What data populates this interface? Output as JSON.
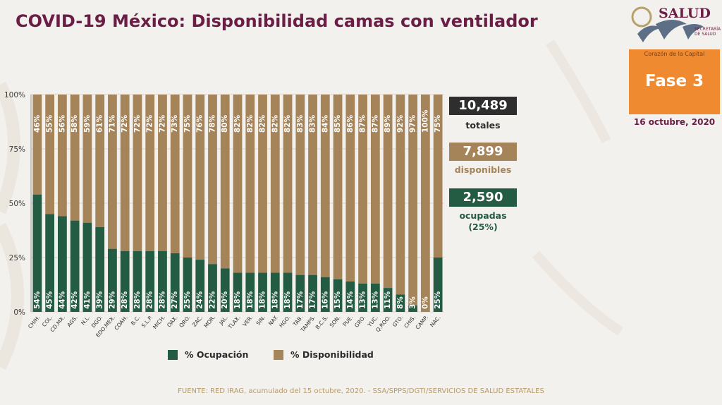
{
  "header": {
    "title": "COVID-19 México: Disponibilidad camas con ventilador"
  },
  "logo": {
    "word": "SALUD",
    "sub": "SECRETARÍA DE SALUD"
  },
  "phase": {
    "sub": "Corazón de la Capital",
    "label": "Fase 3",
    "date": "16 octubre, 2020"
  },
  "stats": {
    "total": {
      "value": "10,489",
      "caption": "totales"
    },
    "available": {
      "value": "7,899",
      "caption": "disponibles"
    },
    "occupied": {
      "value": "2,590",
      "caption_line1": "ocupadas",
      "caption_line2": "(25%)"
    }
  },
  "legend": {
    "occupancy": "% Ocupación",
    "availability": "% Disponibilidad"
  },
  "source": "FUENTE: RED IRAG, acumulado del 15 octubre, 2020. - SSA/SPPS/DGTI/SERVICIOS DE SALUD ESTATALES",
  "colors": {
    "occupancy": "#245b43",
    "availability": "#a6845a",
    "title": "#6c1d45",
    "phase": "#f08a30",
    "total_box": "#2e2e2e"
  },
  "chart_data": {
    "type": "bar",
    "stacked": true,
    "categories": [
      "CHIH.",
      "COL.",
      "CD.MX.",
      "AGS.",
      "N.L.",
      "DGO.",
      "EDO.MEX.",
      "COAH.",
      "B.C.",
      "S.L.P.",
      "MICH.",
      "OAX.",
      "QRO.",
      "ZAC.",
      "MOR.",
      "JAL.",
      "TLAX.",
      "VER.",
      "SIN.",
      "NAY.",
      "HGO.",
      "TAB.",
      "TAMPS.",
      "B.C.S.",
      "SON.",
      "PUE.",
      "GRO.",
      "YUC.",
      "Q.ROO.",
      "GTO.",
      "CHIS.",
      "CAMP.",
      "NAC."
    ],
    "series": [
      {
        "name": "% Ocupación",
        "values": [
          54,
          45,
          44,
          42,
          41,
          39,
          29,
          28,
          28,
          28,
          28,
          27,
          25,
          24,
          22,
          20,
          18,
          18,
          18,
          18,
          18,
          17,
          17,
          16,
          15,
          14,
          13,
          13,
          11,
          8,
          3,
          0,
          25
        ]
      },
      {
        "name": "% Disponibilidad",
        "values": [
          46,
          55,
          56,
          58,
          59,
          61,
          71,
          72,
          72,
          72,
          72,
          73,
          75,
          76,
          78,
          80,
          82,
          82,
          82,
          82,
          82,
          83,
          83,
          84,
          85,
          86,
          87,
          87,
          89,
          92,
          97,
          100,
          75
        ]
      }
    ],
    "occupancy_labels": [
      "54%",
      "45%",
      "44%",
      "42%",
      "41%",
      "39%",
      "29%",
      "28%",
      "28%",
      "28%",
      "28%",
      "27%",
      "25%",
      "24%",
      "22%",
      "20%",
      "18%",
      "18%",
      "18%",
      "18%",
      "18%",
      "17%",
      "17%",
      "16%",
      "15%",
      "14%",
      "13%",
      "13%",
      "11%",
      "8%",
      "3%",
      "0%",
      "25%"
    ],
    "availability_labels": [
      "46%",
      "55%",
      "56%",
      "58%",
      "59%",
      "61%",
      "71%",
      "72%",
      "72%",
      "72%",
      "72%",
      "73%",
      "75%",
      "76%",
      "78%",
      "80%",
      "82%",
      "82%",
      "82%",
      "82%",
      "82%",
      "83%",
      "83%",
      "84%",
      "85%",
      "86%",
      "87%",
      "87%",
      "89%",
      "92%",
      "97%",
      "100%",
      "75%"
    ],
    "y_ticks": [
      "0%",
      "25%",
      "50%",
      "75%",
      "100%"
    ],
    "ylim": [
      0,
      100
    ],
    "legend_position": "bottom"
  }
}
